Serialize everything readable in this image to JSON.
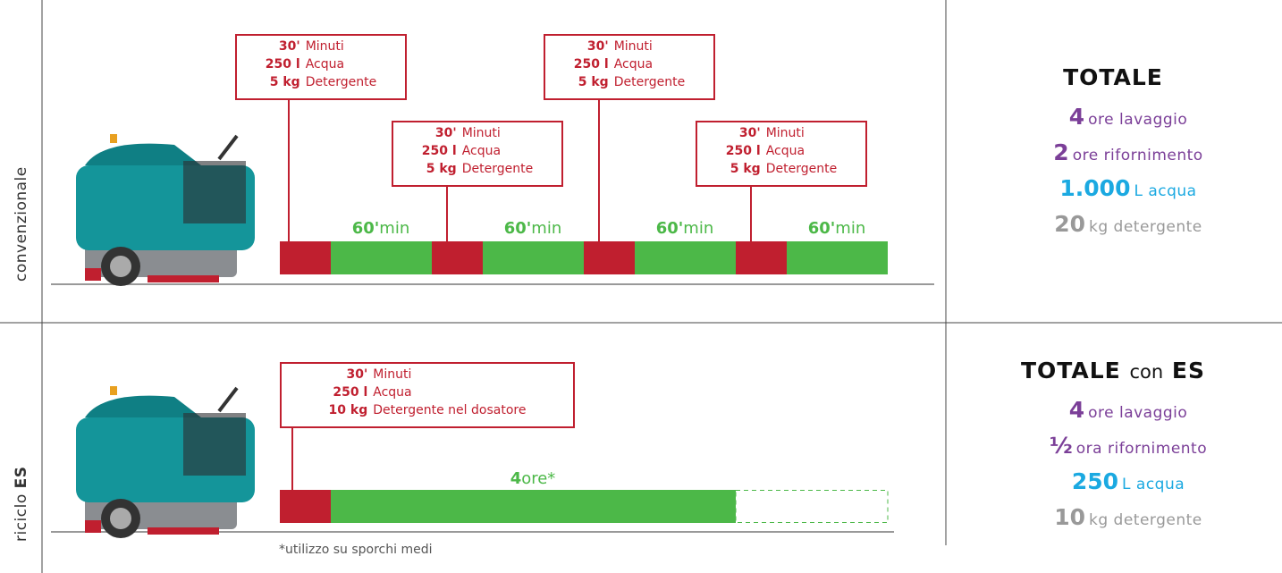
{
  "conventional": {
    "label": "convenzionale",
    "refills": [
      {
        "minutes_value": "30'",
        "minutes_label": "Minuti",
        "water_value": "250 l",
        "water_label": "Acqua",
        "detergent_value": "5 kg",
        "detergent_label": "Detergente"
      },
      {
        "minutes_value": "30'",
        "minutes_label": "Minuti",
        "water_value": "250 l",
        "water_label": "Acqua",
        "detergent_value": "5 kg",
        "detergent_label": "Detergente"
      },
      {
        "minutes_value": "30'",
        "minutes_label": "Minuti",
        "water_value": "250 l",
        "water_label": "Acqua",
        "detergent_value": "5 kg",
        "detergent_label": "Detergente"
      },
      {
        "minutes_value": "30'",
        "minutes_label": "Minuti",
        "water_value": "250 l",
        "water_label": "Acqua",
        "detergent_value": "5 kg",
        "detergent_label": "Detergente"
      }
    ],
    "runs": [
      {
        "value": "60'",
        "unit": "min"
      },
      {
        "value": "60'",
        "unit": "min"
      },
      {
        "value": "60'",
        "unit": "min"
      },
      {
        "value": "60'",
        "unit": "min"
      }
    ]
  },
  "recycling": {
    "label": "riciclo",
    "label_emphasis": "ES",
    "refill": {
      "minutes_value": "30'",
      "minutes_label": "Minuti",
      "water_value": "250 l",
      "water_label": "Acqua",
      "detergent_value": "10 kg",
      "detergent_label": "Detergente nel dosatore"
    },
    "run": {
      "value": "4",
      "unit": "ore*"
    },
    "footnote": "*utilizzo su sporchi medi"
  },
  "totals": [
    {
      "title": "TOTALE",
      "items": [
        {
          "value": "4",
          "unit": "ore lavaggio"
        },
        {
          "value": "2",
          "unit": "ore rifornimento"
        },
        {
          "value": "1.000",
          "unit": "L acqua"
        },
        {
          "value": "20",
          "unit": "kg detergente"
        }
      ]
    },
    {
      "title": "TOTALE",
      "title_middle": "con",
      "title_emphasis": "ES",
      "items": [
        {
          "value": "4",
          "unit": "ore lavaggio"
        },
        {
          "value": "½",
          "unit": "ora rifornimento"
        },
        {
          "value": "250",
          "unit": "L acqua"
        },
        {
          "value": "10",
          "unit": "kg detergente"
        }
      ]
    }
  ]
}
